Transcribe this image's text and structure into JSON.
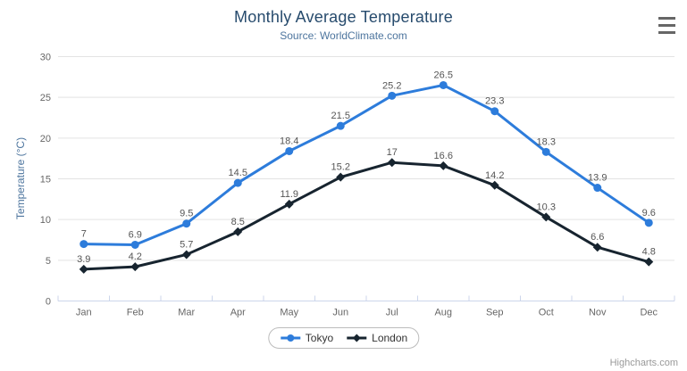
{
  "credits": "Highcharts.com",
  "menu_icon": "hamburger-menu-icon",
  "chart_data": {
    "type": "line",
    "title": "Monthly Average Temperature",
    "subtitle": "Source: WorldClimate.com",
    "xlabel": "",
    "ylabel": "Temperature (°C)",
    "ylim": [
      0,
      30
    ],
    "yticks": [
      0,
      5,
      10,
      15,
      20,
      25,
      30
    ],
    "grid": true,
    "legend_position": "bottom-center",
    "categories": [
      "Jan",
      "Feb",
      "Mar",
      "Apr",
      "May",
      "Jun",
      "Jul",
      "Aug",
      "Sep",
      "Oct",
      "Nov",
      "Dec"
    ],
    "series": [
      {
        "name": "Tokyo",
        "color": "#2d7cdb",
        "marker": "circle",
        "values": [
          7,
          6.9,
          9.5,
          14.5,
          18.4,
          21.5,
          25.2,
          26.5,
          23.3,
          18.3,
          13.9,
          9.6
        ]
      },
      {
        "name": "London",
        "color": "#17242f",
        "marker": "diamond",
        "values": [
          3.9,
          4.2,
          5.7,
          8.5,
          11.9,
          15.2,
          17,
          16.6,
          14.2,
          10.3,
          6.6,
          4.8
        ]
      }
    ]
  }
}
